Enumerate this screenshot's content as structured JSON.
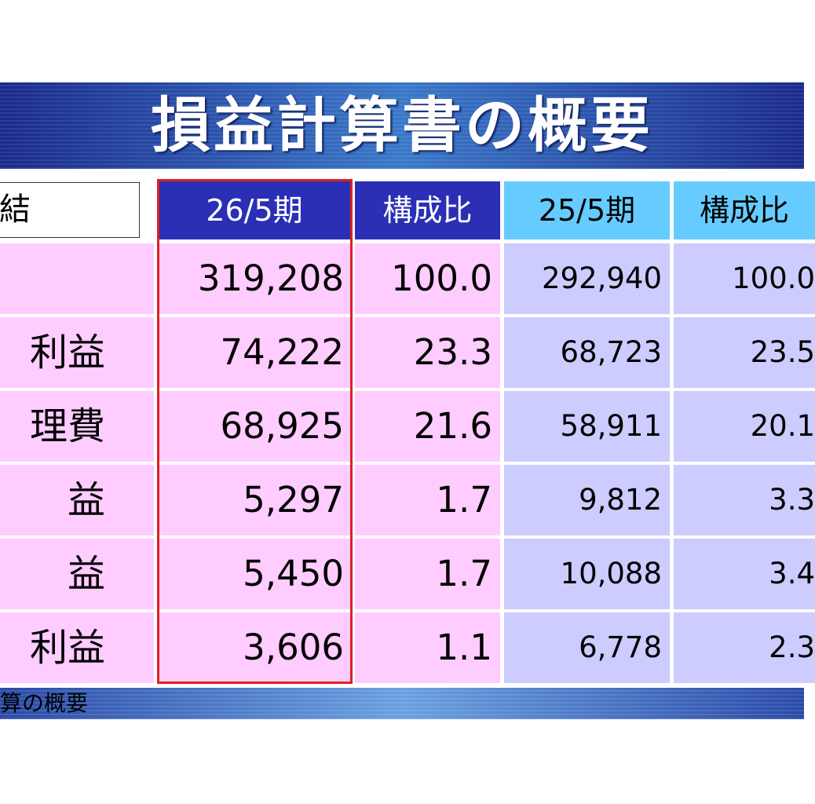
{
  "header": {
    "title": "損益計算書の概要"
  },
  "table": {
    "corner": "結",
    "columns": [
      "26/5期",
      "構成比",
      "25/5期",
      "構成比"
    ],
    "rows": [
      {
        "values": [
          "319,208",
          "100.0",
          "292,940",
          "100.0"
        ]
      },
      {
        "label": "利益",
        "values": [
          "74,222",
          "23.3",
          "68,723",
          "23.5"
        ]
      },
      {
        "label": "理費",
        "values": [
          "68,925",
          "21.6",
          "58,911",
          "20.1"
        ]
      },
      {
        "label": "益",
        "values": [
          "5,297",
          "1.7",
          "9,812",
          "3.3"
        ]
      },
      {
        "label": "益",
        "values": [
          "5,450",
          "1.7",
          "10,088",
          "3.4"
        ]
      },
      {
        "label": "利益",
        "values": [
          "3,606",
          "1.1",
          "6,778",
          "2.3"
        ]
      }
    ]
  },
  "footer": {
    "text": "算の概要"
  }
}
